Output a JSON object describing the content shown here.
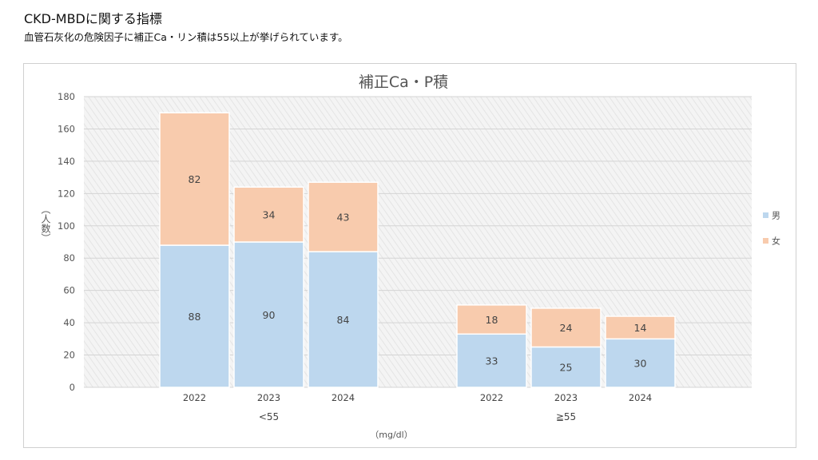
{
  "slide": {
    "title": "CKD-MBDに関する指標",
    "subtitle": "血管石灰化の危険因子に補正Ca・リン積は55以上が挙げられています。"
  },
  "chart_data": {
    "type": "bar",
    "stacked": true,
    "title": "補正Ca・P積",
    "ylabel": "（人数）",
    "xlabel": "（mg/dl）",
    "ylim": [
      0,
      180
    ],
    "yticks": [
      0,
      20,
      40,
      60,
      80,
      100,
      120,
      140,
      160,
      180
    ],
    "groups": [
      {
        "label": "<55",
        "categories": [
          "2022",
          "2023",
          "2024"
        ]
      },
      {
        "label": "≧55",
        "categories": [
          "2022",
          "2023",
          "2024"
        ]
      }
    ],
    "series": [
      {
        "name": "男",
        "color": "#bdd7ee",
        "values": [
          88,
          90,
          84,
          33,
          25,
          30
        ]
      },
      {
        "name": "女",
        "color": "#f8cbad",
        "values": [
          82,
          34,
          43,
          18,
          24,
          14
        ]
      }
    ],
    "legend": "right",
    "grid": true
  }
}
